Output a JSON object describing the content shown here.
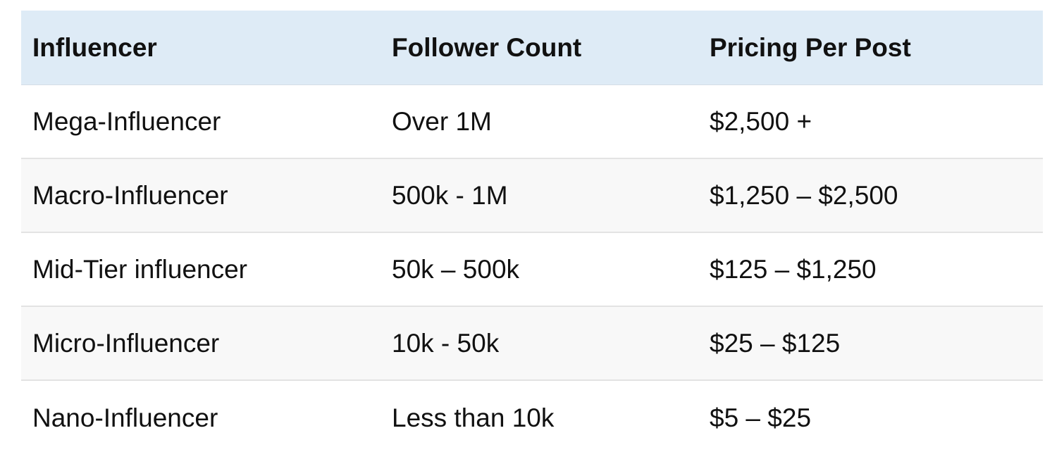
{
  "table": {
    "headers": [
      "Influencer",
      "Follower Count",
      "Pricing Per Post"
    ],
    "rows": [
      [
        "Mega-Influencer",
        "Over 1M",
        "$2,500 +"
      ],
      [
        "Macro-Influencer",
        "500k - 1M",
        "$1,250 – $2,500"
      ],
      [
        "Mid-Tier influencer",
        "50k – 500k",
        "$125 – $1,250"
      ],
      [
        "Micro-Influencer",
        "10k - 50k",
        "$25 – $125"
      ],
      [
        "Nano-Influencer",
        "Less than 10k",
        "$5 – $25"
      ]
    ]
  },
  "colors": {
    "header_background": "#deebf6",
    "alt_row_background": "#f8f8f8",
    "row_divider": "#e3e3e3",
    "text": "#111111"
  }
}
